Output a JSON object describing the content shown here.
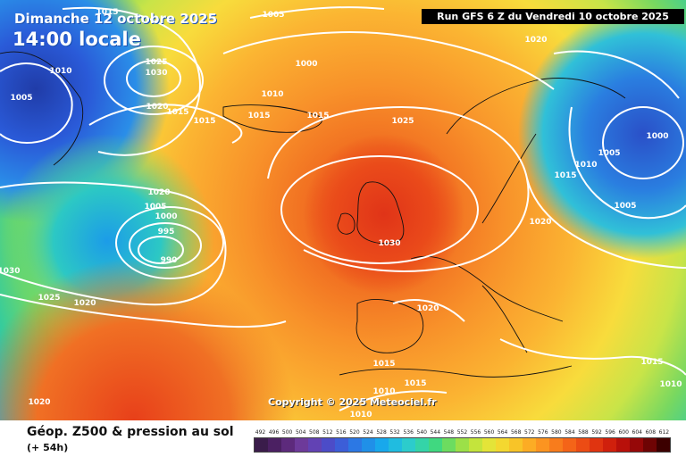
{
  "header": {
    "date": "Dimanche 12 octobre 2025",
    "time": "14:00 locale",
    "run": "Run GFS 6 Z du Vendredi 10 octobre 2025"
  },
  "copyright": "Copyright © 2025 Meteociel.fr",
  "footer": {
    "title": "Géop. Z500 & pression au sol",
    "step": "(+ 54h)"
  },
  "legend": {
    "values": [
      "492",
      "496",
      "500",
      "504",
      "508",
      "512",
      "516",
      "520",
      "524",
      "528",
      "532",
      "536",
      "540",
      "544",
      "548",
      "552",
      "556",
      "560",
      "564",
      "568",
      "572",
      "576",
      "580",
      "584",
      "588",
      "592",
      "596",
      "600",
      "604",
      "608",
      "612"
    ],
    "colors": [
      "#3a1c4a",
      "#4b2062",
      "#5d2a7c",
      "#6d3a9a",
      "#6242b4",
      "#4c4cc8",
      "#3c5ed8",
      "#2c78e4",
      "#2090e8",
      "#18a8ec",
      "#20bce0",
      "#2ccccc",
      "#34d4a8",
      "#40d880",
      "#6cdc60",
      "#9ce048",
      "#c4e43c",
      "#e4e438",
      "#f4d830",
      "#f8c428",
      "#fcac24",
      "#fc9420",
      "#f87c1c",
      "#f46418",
      "#ec4c14",
      "#e03410",
      "#d0200c",
      "#b8100a",
      "#960808",
      "#6e0404",
      "#3c0000"
    ]
  },
  "isobar_labels": [
    "1015",
    "1005",
    "1010",
    "1005",
    "1025",
    "1030",
    "1020",
    "1015",
    "1000",
    "1010",
    "1015",
    "1015",
    "1015",
    "1025",
    "1020",
    "1030",
    "1005",
    "1000",
    "1005",
    "1010",
    "1015",
    "1020",
    "1010",
    "1005",
    "1000",
    "995",
    "990",
    "1030",
    "1025",
    "1020",
    "1020",
    "1030",
    "1015",
    "1010",
    "1015",
    "1010",
    "1015",
    "1010",
    "1020",
    "1020"
  ]
}
